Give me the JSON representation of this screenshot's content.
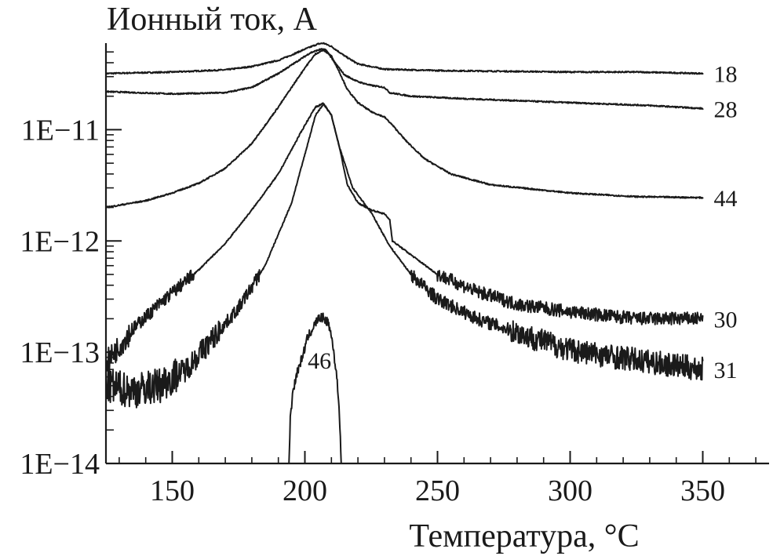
{
  "chart_data": {
    "type": "line",
    "ylabel": "Ионный ток, А",
    "xlabel": "Температура, °C",
    "yscale": "log",
    "xlim": [
      125,
      375
    ],
    "ylim": [
      1e-14,
      6e-11
    ],
    "x_ticks": [
      150,
      200,
      250,
      300,
      350
    ],
    "x_tick_labels": [
      "150",
      "200",
      "250",
      "300",
      "350"
    ],
    "y_ticks": [
      1e-14,
      1e-13,
      1e-12,
      1e-11
    ],
    "y_tick_labels": [
      "1E−14",
      "1E−13",
      "1E−12",
      "1E−11"
    ],
    "grid": false,
    "legend": "none",
    "line_color": "#1a1a1a",
    "series": [
      {
        "name": "18",
        "x": [
          125,
          150,
          170,
          180,
          190,
          195,
          200,
          205,
          207,
          210,
          215,
          220,
          230,
          250,
          275,
          300,
          325,
          350
        ],
        "y": [
          3.2e-11,
          3.3e-11,
          3.45e-11,
          3.7e-11,
          4.2e-11,
          4.7e-11,
          5.3e-11,
          5.9e-11,
          6e-11,
          5.6e-11,
          4.6e-11,
          3.9e-11,
          3.5e-11,
          3.4e-11,
          3.35e-11,
          3.3e-11,
          3.3e-11,
          3.2e-11
        ]
      },
      {
        "name": "28",
        "x": [
          125,
          150,
          170,
          180,
          190,
          197,
          202,
          206,
          208,
          211,
          215,
          220,
          225,
          230,
          232,
          240,
          260,
          300,
          330,
          350
        ],
        "y": [
          2.2e-11,
          2.1e-11,
          2.15e-11,
          2.4e-11,
          3.2e-11,
          4.1e-11,
          4.9e-11,
          5.3e-11,
          5.2e-11,
          4.1e-11,
          3.1e-11,
          2.7e-11,
          2.5e-11,
          2.4e-11,
          2.15e-11,
          2e-11,
          1.9e-11,
          1.75e-11,
          1.65e-11,
          1.55e-11
        ]
      },
      {
        "name": "44",
        "x": [
          125,
          140,
          150,
          160,
          170,
          180,
          190,
          200,
          204,
          207,
          210,
          213,
          216,
          220,
          225,
          230,
          233,
          238,
          245,
          255,
          270,
          300,
          325,
          350
        ],
        "y": [
          2e-12,
          2.3e-12,
          2.7e-12,
          3.3e-12,
          4.5e-12,
          7.5e-12,
          1.6e-11,
          3.6e-11,
          4.8e-11,
          5.2e-11,
          4.6e-11,
          3.3e-11,
          2.3e-11,
          1.75e-11,
          1.45e-11,
          1.3e-11,
          1.1e-11,
          8e-12,
          5.5e-12,
          4e-12,
          3.2e-12,
          2.7e-12,
          2.5e-12,
          2.45e-12
        ]
      },
      {
        "name": "30",
        "x": [
          125,
          135,
          145,
          160,
          170,
          180,
          190,
          200,
          204,
          207,
          210,
          213,
          216,
          220,
          225,
          230,
          232,
          233,
          240,
          250,
          265,
          280,
          300,
          325,
          350
        ],
        "y": [
          8e-14,
          1.6e-13,
          2.7e-13,
          5.5e-13,
          9.5e-13,
          1.9e-12,
          4e-12,
          1.1e-11,
          1.6e-11,
          1.72e-11,
          1.35e-11,
          7e-12,
          3.2e-12,
          2.2e-12,
          1.9e-12,
          1.75e-12,
          1.55e-12,
          1e-12,
          7.5e-13,
          5e-13,
          3.5e-13,
          2.7e-13,
          2.3e-13,
          2e-13,
          2e-13
        ]
      },
      {
        "name": "31",
        "x": [
          125,
          135,
          145,
          155,
          165,
          175,
          185,
          195,
          200,
          204,
          207,
          210,
          213,
          218,
          225,
          232,
          240,
          250,
          265,
          280,
          300,
          325,
          350
        ],
        "y": [
          5e-14,
          4.5e-14,
          5e-14,
          7e-14,
          1.3e-13,
          2.5e-13,
          6e-13,
          2.2e-12,
          6e-12,
          1.35e-11,
          1.7e-11,
          1.35e-11,
          7e-12,
          3e-12,
          1.8e-12,
          9e-13,
          5e-13,
          3e-13,
          2e-13,
          1.5e-13,
          1.05e-13,
          8.5e-14,
          7e-14
        ]
      },
      {
        "name": "46",
        "x": [
          194,
          194.5,
          195.5,
          197,
          199,
          201,
          203,
          205,
          207,
          209,
          210.5,
          212,
          213,
          213.7
        ],
        "y": [
          1e-14,
          2.5e-14,
          4.5e-14,
          6.5e-14,
          9e-14,
          1.35e-13,
          1.65e-13,
          2e-13,
          2.05e-13,
          1.8e-13,
          1.2e-13,
          6e-14,
          3e-14,
          1e-14
        ]
      }
    ]
  }
}
